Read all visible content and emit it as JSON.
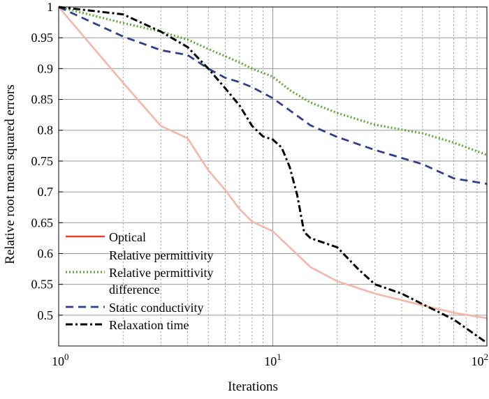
{
  "chart_data": {
    "type": "line",
    "title": "",
    "xlabel": "Iterations",
    "ylabel": "Relative root mean squared errors",
    "x_scale": "log",
    "xlim": [
      1,
      100
    ],
    "ylim": [
      0.45,
      1
    ],
    "grid": true,
    "legend_position": "bottom-left",
    "x_ticks": [
      {
        "value": 1,
        "base": "10",
        "exp": "0"
      },
      {
        "value": 10,
        "base": "10",
        "exp": "1"
      },
      {
        "value": 100,
        "base": "10",
        "exp": "2"
      }
    ],
    "y_ticks": [
      {
        "value": 0.5,
        "label": "0.5"
      },
      {
        "value": 0.55,
        "label": "0.55"
      },
      {
        "value": 0.6,
        "label": "0.6"
      },
      {
        "value": 0.65,
        "label": "0.65"
      },
      {
        "value": 0.7,
        "label": "0.7"
      },
      {
        "value": 0.75,
        "label": "0.75"
      },
      {
        "value": 0.8,
        "label": "0.8"
      },
      {
        "value": 0.85,
        "label": "0.85"
      },
      {
        "value": 0.9,
        "label": "0.9"
      },
      {
        "value": 0.95,
        "label": "0.95"
      },
      {
        "value": 1,
        "label": "1"
      }
    ],
    "series": [
      {
        "name": "Optical",
        "legend_lines": [
          "Optical"
        ],
        "color": "#f4b6a6",
        "legend_color": "#e8452c",
        "dash": "",
        "width": 2.6,
        "x": [
          1,
          2,
          3,
          4,
          5,
          6,
          7,
          8,
          10,
          15,
          20,
          30,
          50,
          70,
          100
        ],
        "y": [
          1,
          0.877,
          0.807,
          0.787,
          0.735,
          0.703,
          0.672,
          0.652,
          0.636,
          0.578,
          0.555,
          0.535,
          0.516,
          0.504,
          0.495
        ]
      },
      {
        "name": "Relative permittivity",
        "legend_lines": [
          "Relative permittivity"
        ],
        "color": "none",
        "legend_color": "none",
        "dash": "",
        "width": 0,
        "x": [],
        "y": []
      },
      {
        "name": "Relative permittivity difference",
        "legend_lines": [
          "Relative permittivity",
          "difference"
        ],
        "color": "#5aaa32",
        "legend_color": "#5aaa32",
        "dash": "2,3",
        "width": 3.2,
        "x": [
          1,
          2,
          3,
          4,
          5,
          6,
          7,
          8,
          10,
          12,
          15,
          20,
          30,
          50,
          70,
          100
        ],
        "y": [
          1,
          0.974,
          0.96,
          0.947,
          0.932,
          0.92,
          0.91,
          0.9,
          0.887,
          0.865,
          0.845,
          0.828,
          0.809,
          0.795,
          0.78,
          0.76
        ]
      },
      {
        "name": "Static conductivity",
        "legend_lines": [
          "Static conductivity"
        ],
        "color": "#2e3f8f",
        "legend_color": "#2e3f8f",
        "dash": "11,7",
        "width": 2.8,
        "x": [
          1,
          2,
          3,
          4,
          5,
          6,
          7,
          8,
          10,
          15,
          20,
          30,
          50,
          70,
          100
        ],
        "y": [
          1,
          0.952,
          0.93,
          0.922,
          0.9,
          0.885,
          0.878,
          0.87,
          0.852,
          0.808,
          0.789,
          0.768,
          0.745,
          0.722,
          0.713
        ]
      },
      {
        "name": "Relaxation time",
        "legend_lines": [
          "Relaxation time"
        ],
        "color": "#000000",
        "legend_color": "#000000",
        "dash": "10,4,3,4",
        "width": 3,
        "x": [
          1,
          2,
          3,
          4,
          5,
          6,
          7,
          8,
          9,
          10,
          11,
          12,
          13,
          14,
          15,
          20,
          25,
          30,
          40,
          50,
          70,
          100
        ],
        "y": [
          1,
          0.988,
          0.96,
          0.935,
          0.9,
          0.868,
          0.84,
          0.807,
          0.79,
          0.785,
          0.772,
          0.74,
          0.695,
          0.635,
          0.625,
          0.61,
          0.575,
          0.55,
          0.535,
          0.518,
          0.493,
          0.455
        ]
      }
    ]
  }
}
